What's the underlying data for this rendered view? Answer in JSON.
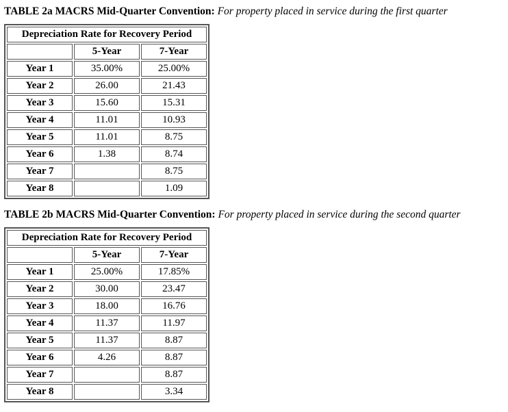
{
  "colors": {
    "background": "#ffffff",
    "text": "#000000",
    "table_border": "#545454"
  },
  "sections": [
    {
      "title_bold": "TABLE 2a MACRS Mid-Quarter Convention:",
      "title_italic": "For property placed in service during the first quarter",
      "table": {
        "header": "Depreciation Rate for Recovery Period",
        "col_5": "5-Year",
        "col_7": "7-Year",
        "rows": [
          {
            "label": "Year 1",
            "five": "35.00%",
            "seven": "25.00%"
          },
          {
            "label": "Year 2",
            "five": "26.00",
            "seven": "21.43"
          },
          {
            "label": "Year 3",
            "five": "15.60",
            "seven": "15.31"
          },
          {
            "label": "Year 4",
            "five": "11.01",
            "seven": "10.93"
          },
          {
            "label": "Year 5",
            "five": "11.01",
            "seven": "8.75"
          },
          {
            "label": "Year 6",
            "five": "1.38",
            "seven": "8.74"
          },
          {
            "label": "Year 7",
            "five": "",
            "seven": "8.75"
          },
          {
            "label": "Year 8",
            "five": "",
            "seven": "1.09"
          }
        ]
      }
    },
    {
      "title_bold": "TABLE 2b MACRS Mid-Quarter Convention:",
      "title_italic": "For property placed in service during the second quarter",
      "table": {
        "header": "Depreciation Rate for Recovery Period",
        "col_5": "5-Year",
        "col_7": "7-Year",
        "rows": [
          {
            "label": "Year 1",
            "five": "25.00%",
            "seven": "17.85%"
          },
          {
            "label": "Year 2",
            "five": "30.00",
            "seven": "23.47"
          },
          {
            "label": "Year 3",
            "five": "18.00",
            "seven": "16.76"
          },
          {
            "label": "Year 4",
            "five": "11.37",
            "seven": "11.97"
          },
          {
            "label": "Year 5",
            "five": "11.37",
            "seven": "8.87"
          },
          {
            "label": "Year 6",
            "five": "4.26",
            "seven": "8.87"
          },
          {
            "label": "Year 7",
            "five": "",
            "seven": "8.87"
          },
          {
            "label": "Year 8",
            "five": "",
            "seven": "3.34"
          }
        ]
      }
    }
  ]
}
